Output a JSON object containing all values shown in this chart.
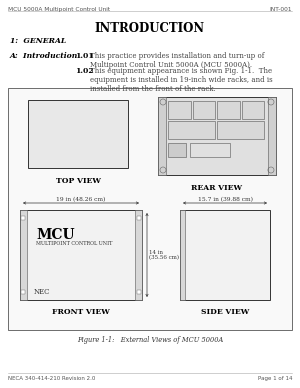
{
  "header_left": "MCU 5000A Multipoint Control Unit",
  "header_right": "INT-001",
  "title": "INTRODUCTION",
  "section": "1:  GENERAL",
  "subsection_label": "A:  Introduction",
  "para_101_label": "1.01",
  "para_101_text": "This practice provides installation and turn-up of Multipoint Control Unit 5000A (MCU 5000A).",
  "para_102_label": "1.02",
  "para_102_text": "This equipment appearance is shown Fig. 1-1.  The equipment is installed in 19-inch wide racks, and is installed from the front of the rack.",
  "figure_caption": "Figure 1-1:   External Views of MCU 5000A",
  "top_view_label": "TOP VIEW",
  "rear_view_label": "REAR VIEW",
  "front_view_label": "FRONT VIEW",
  "side_view_label": "SIDE VIEW",
  "mcu_label": "MCU",
  "mcu_sublabel": "MULTIPOINT CONTROL UNIT",
  "nec_label": "NEC",
  "dim_19in": "19 in (48.26 cm)",
  "dim_157in": "15.7 in (39.88 cm)",
  "dim_14in": "14 in\n(35.56 cm)",
  "footer_left": "NECA 340-414-210 Revision 2.0",
  "footer_right": "Page 1 of 14",
  "bg_color": "#ffffff",
  "text_color": "#000000",
  "header_color": "#555555",
  "box_edge_color": "#444444",
  "box_face_color": "#f5f5f5",
  "inner_face_color": "#e0e0e0"
}
